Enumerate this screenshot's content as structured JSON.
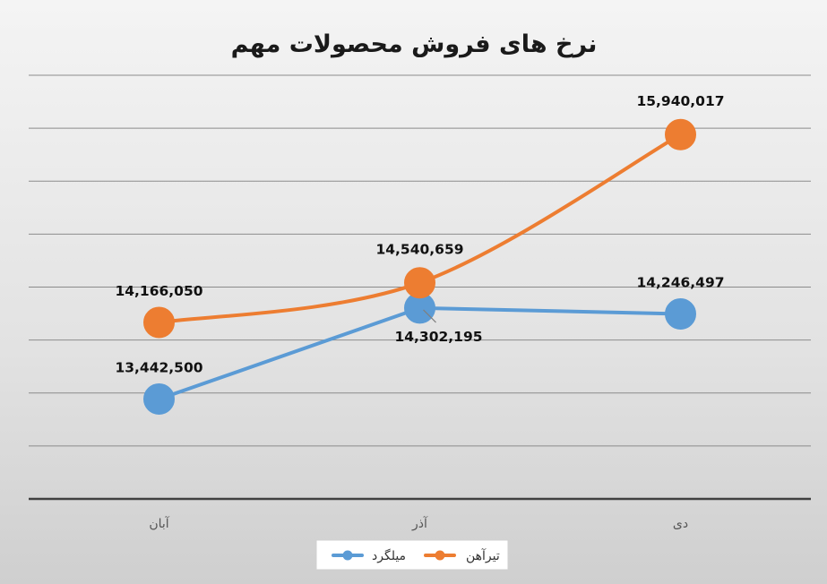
{
  "chart_data": {
    "type": "line",
    "title": "نرخ های فروش محصولات مهم",
    "categories": [
      "آبان",
      "آذر",
      "دی"
    ],
    "series": [
      {
        "name": "میلگرد",
        "values": [
          13442500,
          14302195,
          14246497
        ],
        "labels": [
          "13,442,500",
          "14,302,195",
          "14,246,497"
        ],
        "color": "#5b9bd5",
        "smooth": false
      },
      {
        "name": "تیرآهن",
        "values": [
          14166050,
          14540659,
          15940017
        ],
        "labels": [
          "14,166,050",
          "14,540,659",
          "15,940,017"
        ],
        "color": "#ed7d31",
        "smooth": true
      }
    ],
    "ylim": [
      12500000,
      16500000
    ],
    "grid": true,
    "legend": "bottom",
    "axis_color": "#404040",
    "grid_color": "#8c8c8c"
  }
}
